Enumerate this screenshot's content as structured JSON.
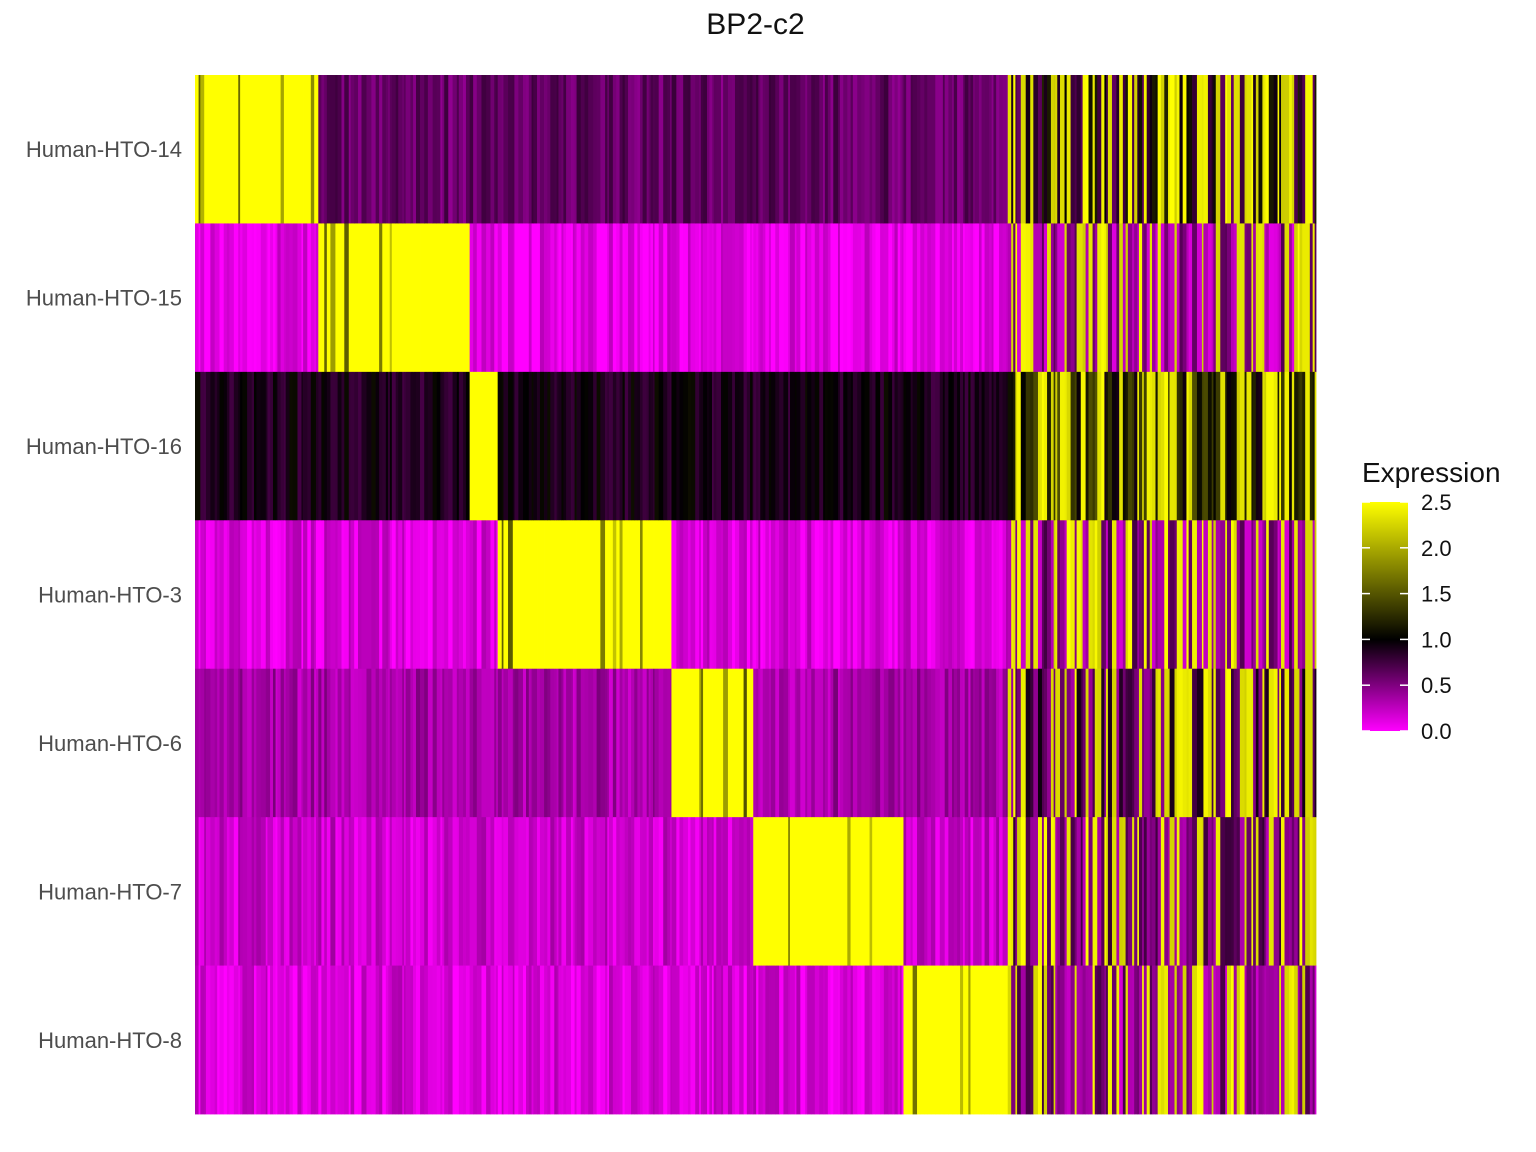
{
  "chart_data": {
    "type": "heatmap",
    "title": "BP2-c2",
    "rows": [
      "Human-HTO-14",
      "Human-HTO-15",
      "Human-HTO-16",
      "Human-HTO-3",
      "Human-HTO-6",
      "Human-HTO-7",
      "Human-HTO-8"
    ],
    "column_groups": [
      {
        "high_row": 0,
        "fraction": 0.11
      },
      {
        "high_row": 1,
        "fraction": 0.135
      },
      {
        "high_row": 2,
        "fraction": 0.025
      },
      {
        "high_row": 3,
        "fraction": 0.155
      },
      {
        "high_row": 4,
        "fraction": 0.073
      },
      {
        "high_row": 5,
        "fraction": 0.134
      },
      {
        "high_row": 6,
        "fraction": 0.093
      },
      {
        "high_row": -1,
        "fraction": 0.275
      }
    ],
    "row_background_levels": [
      0.6,
      0.1,
      0.9,
      0.15,
      0.35,
      0.2,
      0.15
    ],
    "legend": {
      "title": "Expression",
      "ticks": [
        "0.0",
        "0.5",
        "1.0",
        "1.5",
        "2.0",
        "2.5"
      ],
      "tick_values": [
        0,
        0.5,
        1.0,
        1.5,
        2.0,
        2.5
      ],
      "range": [
        0,
        2.5
      ]
    },
    "colors": {
      "low": "#ff00ff",
      "mid": "#000000",
      "high": "#ffff00"
    }
  }
}
